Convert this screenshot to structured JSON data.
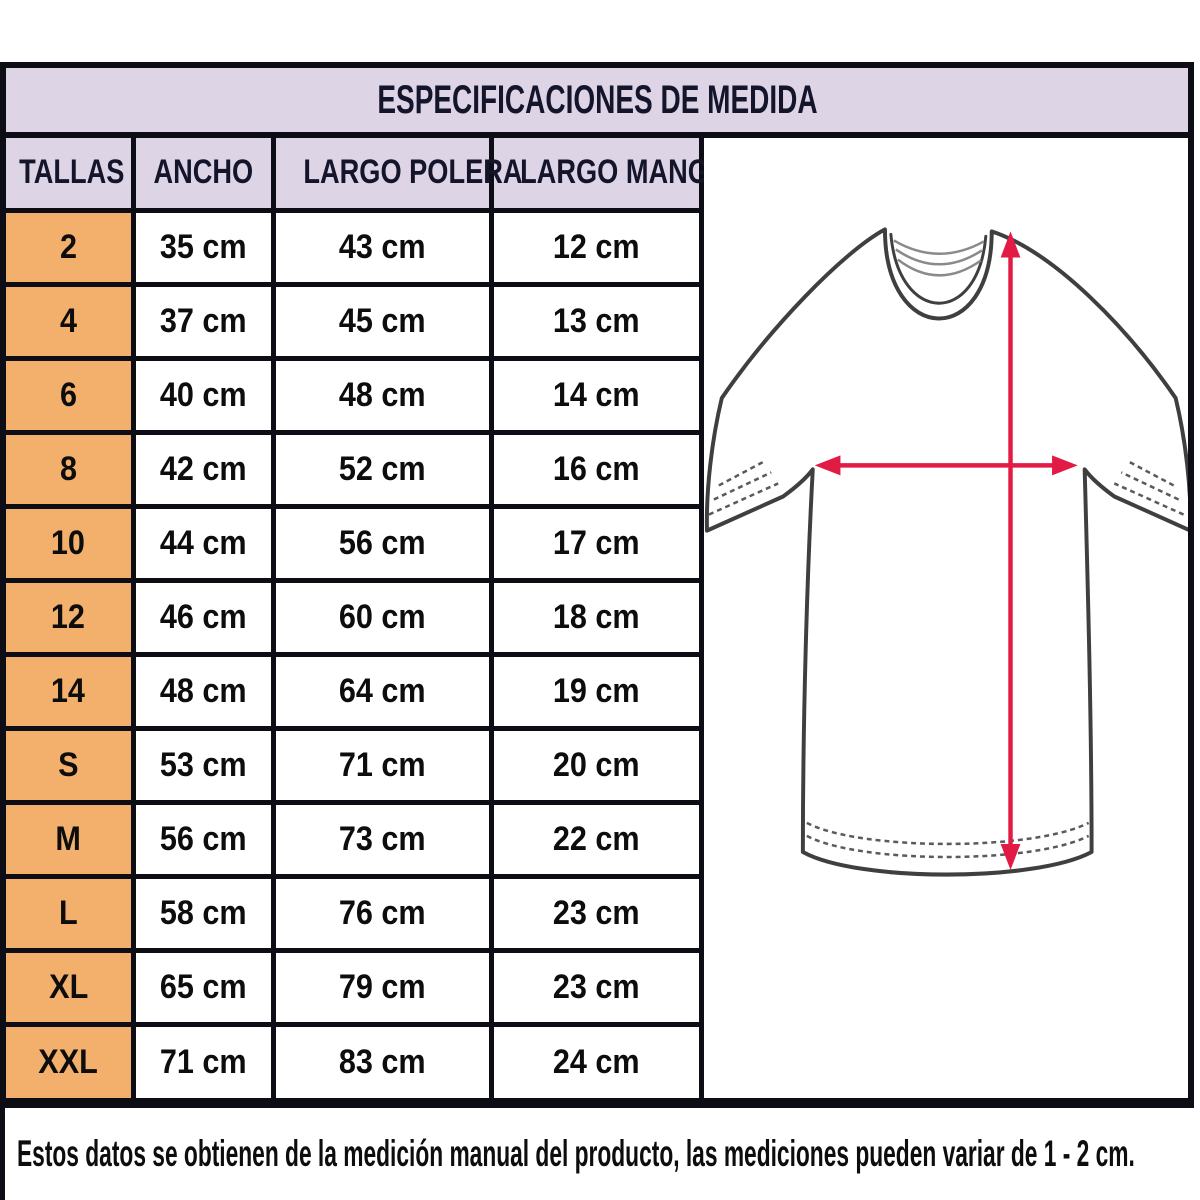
{
  "header": {
    "title": "ESPECIFICACIONES DE MEDIDA"
  },
  "table": {
    "columns": [
      "TALLAS",
      "ANCHO",
      "LARGO POLERA",
      "LARGO MANGA"
    ],
    "rows": [
      [
        "2",
        "35 cm",
        "43 cm",
        "12 cm"
      ],
      [
        "4",
        "37 cm",
        "45 cm",
        "13 cm"
      ],
      [
        "6",
        "40 cm",
        "48 cm",
        "14 cm"
      ],
      [
        "8",
        "42 cm",
        "52 cm",
        "16 cm"
      ],
      [
        "10",
        "44 cm",
        "56 cm",
        "17 cm"
      ],
      [
        "12",
        "46 cm",
        "60 cm",
        "18 cm"
      ],
      [
        "14",
        "48 cm",
        "64 cm",
        "19 cm"
      ],
      [
        "S",
        "53 cm",
        "71 cm",
        "20 cm"
      ],
      [
        "M",
        "56 cm",
        "73 cm",
        "22 cm"
      ],
      [
        "L",
        "58 cm",
        "76 cm",
        "23 cm"
      ],
      [
        "XL",
        "65 cm",
        "79 cm",
        "23 cm"
      ],
      [
        "XXL",
        "71 cm",
        "83 cm",
        "24 cm"
      ]
    ]
  },
  "diagram": {
    "icon": "tshirt-measurement-diagram",
    "arrows": [
      "vertical-length-arrow",
      "horizontal-width-arrow"
    ]
  },
  "footer": {
    "note": "Estos datos se obtienen de la medición manual del producto, las mediciones pueden variar de 1 - 2 cm."
  },
  "colors": {
    "header_bg": "#ddd4e6",
    "size_column_bg": "#f2b06c",
    "border": "#0d0d15",
    "arrow": "#e21b44",
    "shirt_outline": "#3f3f3f"
  }
}
